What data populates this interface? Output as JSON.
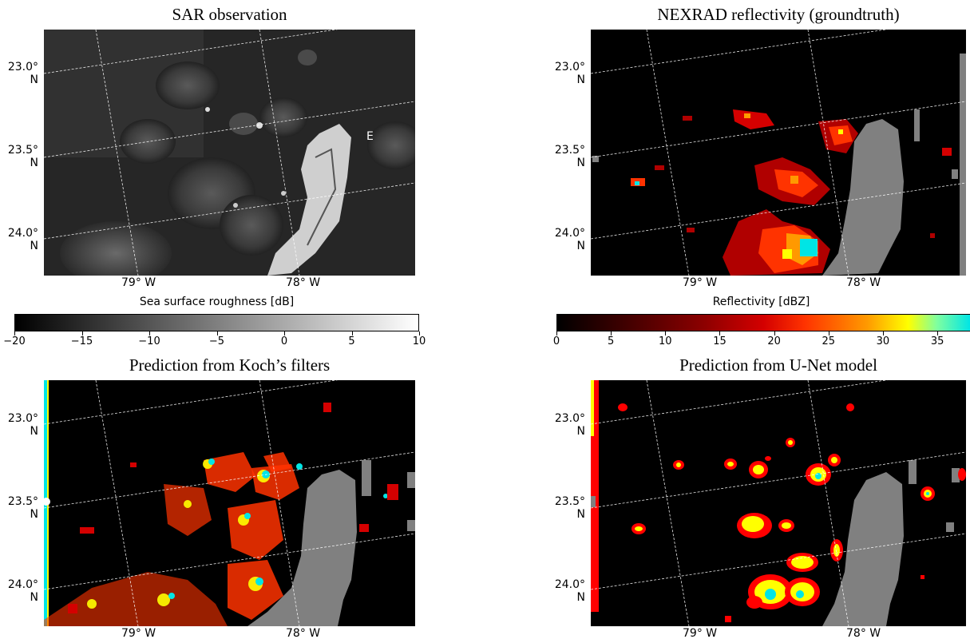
{
  "panels": [
    {
      "id": "sar",
      "title": "SAR observation",
      "lat_labels": [
        "23.0°\nN",
        "23.5°\nN",
        "24.0°\nN"
      ],
      "lon_labels": [
        "79° W",
        "78° W"
      ],
      "annotation": "E"
    },
    {
      "id": "nexrad",
      "title": "NEXRAD reflectivity (groundtruth)",
      "lat_labels": [
        "23.0°\nN",
        "23.5°\nN",
        "24.0°\nN"
      ],
      "lon_labels": [
        "79° W",
        "78° W"
      ]
    },
    {
      "id": "koch",
      "title": "Prediction from Koch’s filters",
      "lat_labels": [
        "23.0°\nN",
        "23.5°\nN",
        "24.0°\nN"
      ],
      "lon_labels": [
        "79° W",
        "78° W"
      ]
    },
    {
      "id": "unet",
      "title": "Prediction from U-Net model",
      "lat_labels": [
        "23.0°\nN",
        "23.5°\nN",
        "24.0°\nN"
      ],
      "lon_labels": [
        "79° W",
        "78° W"
      ]
    }
  ],
  "colorbars": {
    "sar": {
      "label": "Sea surface roughness [dB]",
      "ticks": [
        "−20",
        "−15",
        "−10",
        "−5",
        "0",
        "5",
        "10"
      ],
      "range": [
        -20,
        10
      ],
      "colors": [
        "#000000",
        "#ffffff"
      ]
    },
    "nexrad": {
      "label": "Reflectivity [dBZ]",
      "ticks": [
        "0",
        "5",
        "10",
        "15",
        "20",
        "25",
        "30",
        "35"
      ],
      "range": [
        0,
        38
      ],
      "colors": [
        "#000000",
        "#3a0000",
        "#8a0000",
        "#d40000",
        "#ff3300",
        "#ff9900",
        "#ffff00",
        "#7fffa0",
        "#00e5e5"
      ]
    }
  },
  "legend_colors": {
    "land": "#808080",
    "gridline": "#ffffff",
    "background": "#000000"
  }
}
